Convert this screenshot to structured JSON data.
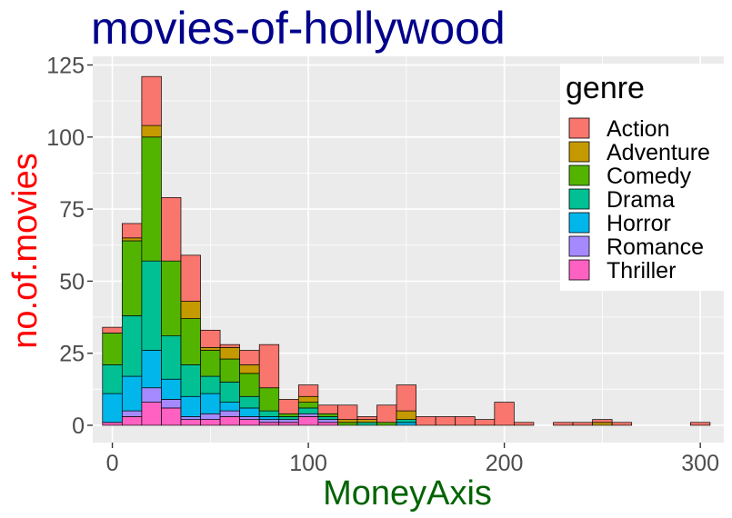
{
  "chart_data": {
    "type": "bar",
    "subtype": "stacked-histogram",
    "title": "movies-of-hollywood",
    "xlabel": "MoneyAxis",
    "ylabel": "no.of.movies",
    "xlim": [
      -10,
      312
    ],
    "ylim": [
      -6,
      128
    ],
    "x_ticks": [
      0,
      100,
      200,
      300
    ],
    "y_ticks": [
      0,
      25,
      50,
      75,
      100,
      125
    ],
    "x_tick_labels": [
      "0",
      "100",
      "200",
      "300"
    ],
    "y_tick_labels": [
      "0",
      "25",
      "50",
      "75",
      "100",
      "125"
    ],
    "grid": true,
    "legend_position": "right",
    "legend_title": "genre",
    "bin_width": 10,
    "bins": [
      0,
      10,
      20,
      30,
      40,
      50,
      60,
      70,
      80,
      90,
      100,
      110,
      120,
      130,
      140,
      150,
      160,
      170,
      180,
      190,
      200,
      210,
      220,
      230,
      240,
      250,
      260,
      270,
      280,
      290,
      300
    ],
    "series": [
      {
        "name": "Thriller",
        "color": "#FF61C3",
        "values": [
          1,
          3,
          8,
          6,
          2,
          2,
          3,
          2,
          1,
          1,
          3,
          1,
          0,
          0,
          0,
          0,
          0,
          0,
          0,
          0,
          0,
          0,
          0,
          0,
          0,
          0,
          0,
          0,
          0,
          0,
          0
        ]
      },
      {
        "name": "Romance",
        "color": "#A58AFF",
        "values": [
          0,
          2,
          5,
          3,
          1,
          2,
          2,
          1,
          1,
          1,
          1,
          1,
          0,
          0,
          0,
          0,
          0,
          0,
          0,
          0,
          0,
          0,
          0,
          0,
          0,
          0,
          0,
          0,
          0,
          0,
          0
        ]
      },
      {
        "name": "Horror",
        "color": "#00B6EB",
        "values": [
          10,
          12,
          13,
          7,
          7,
          7,
          3,
          3,
          1,
          0,
          0,
          0,
          0,
          0,
          0,
          1,
          0,
          0,
          0,
          0,
          0,
          0,
          0,
          0,
          0,
          0,
          0,
          0,
          0,
          0,
          0
        ]
      },
      {
        "name": "Drama",
        "color": "#00C094",
        "values": [
          10,
          21,
          31,
          15,
          11,
          6,
          7,
          4,
          2,
          1,
          2,
          1,
          0,
          1,
          0,
          1,
          0,
          0,
          0,
          0,
          0,
          0,
          0,
          0,
          0,
          0,
          0,
          0,
          0,
          0,
          0
        ]
      },
      {
        "name": "Comedy",
        "color": "#53B400",
        "values": [
          11,
          26,
          43,
          26,
          16,
          9,
          8,
          8,
          8,
          1,
          2,
          1,
          1,
          0,
          1,
          0,
          0,
          0,
          0,
          0,
          0,
          0,
          0,
          0,
          0,
          0,
          0,
          0,
          0,
          0,
          0
        ]
      },
      {
        "name": "Adventure",
        "color": "#C49A00",
        "values": [
          0,
          1,
          4,
          0,
          6,
          1,
          4,
          3,
          0,
          0,
          2,
          0,
          1,
          1,
          0,
          3,
          0,
          0,
          0,
          0,
          0,
          0,
          0,
          0,
          0,
          1,
          0,
          0,
          0,
          0,
          0
        ]
      },
      {
        "name": "Action",
        "color": "#F8766D",
        "values": [
          2,
          5,
          17,
          22,
          16,
          6,
          1,
          5,
          15,
          5,
          4,
          3,
          5,
          1,
          6,
          9,
          3,
          3,
          3,
          2,
          8,
          1,
          0,
          1,
          1,
          1,
          1,
          0,
          0,
          0,
          1
        ]
      }
    ],
    "legend_order": [
      "Action",
      "Adventure",
      "Comedy",
      "Drama",
      "Horror",
      "Romance",
      "Thriller"
    ]
  },
  "colors": {
    "title": "#00008B",
    "xlabel": "#006400",
    "ylabel": "#FF0000",
    "panel": "#EBEBEB",
    "grid": "#FFFFFF",
    "tick_text": "#4D4D4D",
    "bar_outline": "#000000"
  }
}
